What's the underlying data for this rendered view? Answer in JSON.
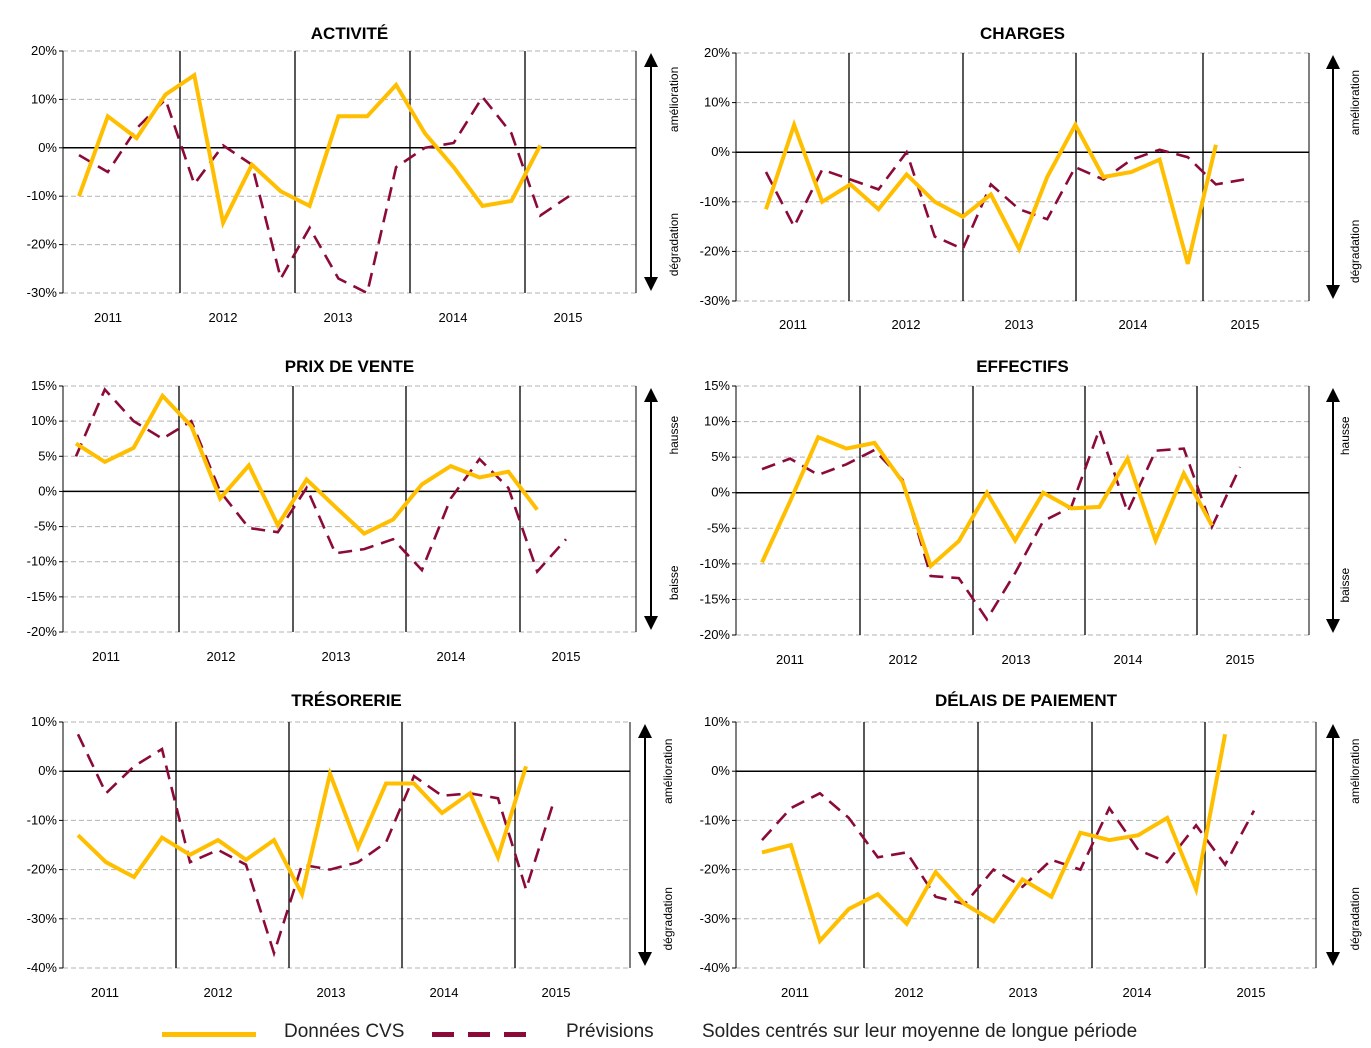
{
  "colors": {
    "cvs": "#ffbf00",
    "prev": "#8b0a3a",
    "grid": "#b3b3b3"
  },
  "legend": {
    "cvs_label": "Données CVS",
    "prev_label": "Prévisions",
    "note": "Soldes centrés sur leur moyenne de longue période"
  },
  "chart_data": [
    {
      "type": "line",
      "title": "ACTIVITÉ",
      "x_labels": [
        "2011",
        "2012",
        "2013",
        "2014",
        "2015"
      ],
      "y_ticks": [
        "20%",
        "10%",
        "0%",
        "-10%",
        "-20%",
        "-30%"
      ],
      "ylim": [
        -30,
        20
      ],
      "side_up": "amélioration",
      "side_down": "dégradation",
      "series": [
        {
          "name": "Données CVS",
          "values": [
            -10,
            6.5,
            2,
            11,
            15,
            -15.5,
            -3.5,
            -9,
            -12,
            6.5,
            6.5,
            13,
            3,
            -4,
            -12,
            -11,
            0.5,
            null
          ]
        },
        {
          "name": "Prévisions",
          "values": [
            -1.5,
            -5,
            4,
            10,
            -7.5,
            0.5,
            -3.5,
            -27,
            -16.5,
            -27,
            -30,
            -4,
            0,
            1,
            10.5,
            3,
            -14,
            -10
          ]
        }
      ]
    },
    {
      "type": "line",
      "title": "CHARGES",
      "x_labels": [
        "2011",
        "2012",
        "2013",
        "2014",
        "2015"
      ],
      "y_ticks": [
        "20%",
        "10%",
        "0%",
        "-10%",
        "-20%",
        "-30%"
      ],
      "ylim": [
        -30,
        20
      ],
      "side_up": "amélioration",
      "side_down": "dégradation",
      "series": [
        {
          "name": "Données CVS",
          "values": [
            -11.5,
            5.5,
            -10,
            -6.5,
            -11.5,
            -4.5,
            -10,
            -13,
            -8.5,
            -19.5,
            -5,
            5.5,
            -5,
            -4,
            -1.5,
            -22.5,
            1.5,
            null
          ]
        },
        {
          "name": "Prévisions",
          "values": [
            -4,
            -15,
            -3.5,
            -5.5,
            -7.5,
            0,
            -17,
            -19.5,
            -6.5,
            -11.5,
            -13.5,
            -3,
            -5.5,
            -1.5,
            0.5,
            -1,
            -6.5,
            -5.5
          ]
        }
      ]
    },
    {
      "type": "line",
      "title": "PRIX DE VENTE",
      "x_labels": [
        "2011",
        "2012",
        "2013",
        "2014",
        "2015"
      ],
      "y_ticks": [
        "15%",
        "10%",
        "5%",
        "0%",
        "-5%",
        "-10%",
        "-15%",
        "-20%"
      ],
      "ylim": [
        -20,
        15
      ],
      "side_up": "hausse",
      "side_down": "baisse",
      "series": [
        {
          "name": "Données CVS",
          "values": [
            6.8,
            4.2,
            6.2,
            13.6,
            9.3,
            -1,
            3.7,
            -4.8,
            1.7,
            -2.2,
            -6,
            -4,
            1,
            3.6,
            2,
            2.8,
            -2.6,
            null
          ]
        },
        {
          "name": "Prévisions",
          "values": [
            5,
            14.5,
            10,
            7.5,
            10,
            0,
            -5.2,
            -5.8,
            0.5,
            -8.8,
            -8.2,
            -6.8,
            -11.2,
            -1,
            4.6,
            0.5,
            -11.4,
            -6.8
          ]
        }
      ]
    },
    {
      "type": "line",
      "title": "EFFECTIFS",
      "x_labels": [
        "2011",
        "2012",
        "2013",
        "2014",
        "2015"
      ],
      "y_ticks": [
        "15%",
        "10%",
        "5%",
        "0%",
        "-5%",
        "-10%",
        "-15%",
        "-20%"
      ],
      "ylim": [
        -20,
        15
      ],
      "side_up": "hausse",
      "side_down": "baisse",
      "series": [
        {
          "name": "Données CVS",
          "values": [
            -9.8,
            -1.2,
            7.8,
            6.2,
            7,
            1.5,
            -10.3,
            -6.8,
            0,
            -6.7,
            0,
            -2.2,
            -2,
            4.8,
            -6.7,
            2.7,
            -4.6,
            null
          ]
        },
        {
          "name": "Prévisions",
          "values": [
            3.3,
            4.8,
            2.5,
            4,
            6,
            1.8,
            -11.7,
            -12,
            -17.8,
            -11.3,
            -4,
            -2,
            8.9,
            -2.7,
            5.9,
            6.2,
            -4.8,
            3.6
          ]
        }
      ]
    },
    {
      "type": "line",
      "title": "TRÉSORERIE",
      "x_labels": [
        "2011",
        "2012",
        "2013",
        "2014",
        "2015"
      ],
      "y_ticks": [
        "10%",
        "0%",
        "-10%",
        "-20%",
        "-30%",
        "-40%"
      ],
      "ylim": [
        -40,
        10
      ],
      "side_up": "amélioration",
      "side_down": "dégradation",
      "series": [
        {
          "name": "Données CVS",
          "values": [
            -13,
            -18.5,
            -21.5,
            -13.5,
            -17,
            -14,
            -18,
            -14,
            -25,
            -0.5,
            -15.5,
            -2.5,
            -2.5,
            -8.5,
            -4.5,
            -17.5,
            1,
            null
          ]
        },
        {
          "name": "Prévisions",
          "values": [
            7.5,
            -4.5,
            1,
            4.5,
            -18.5,
            -16,
            -19,
            -37,
            -19,
            -20,
            -18.5,
            -14.5,
            -1,
            -5,
            -4.5,
            -5.5,
            -24,
            -6
          ]
        }
      ]
    },
    {
      "type": "line",
      "title": "DÉLAIS DE PAIEMENT",
      "x_labels": [
        "2011",
        "2012",
        "2013",
        "2014",
        "2015"
      ],
      "y_ticks": [
        "10%",
        "0%",
        "-10%",
        "-20%",
        "-30%",
        "-40%"
      ],
      "ylim": [
        -40,
        10
      ],
      "side_up": "amélioration",
      "side_down": "dégradation",
      "series": [
        {
          "name": "Données CVS",
          "values": [
            -16.5,
            -15,
            -34.5,
            -28,
            -25,
            -31,
            -20.5,
            -27,
            -30.5,
            -22,
            -25.5,
            -12.5,
            -14,
            -13,
            -9.5,
            -24,
            7.5,
            null
          ]
        },
        {
          "name": "Prévisions",
          "values": [
            -14,
            -7.5,
            -4.5,
            -9.5,
            -17.5,
            -16.5,
            -25.5,
            -27,
            -20,
            -23.5,
            -18,
            -20,
            -7.5,
            -16,
            -18.5,
            -11,
            -19,
            -8
          ]
        }
      ]
    }
  ]
}
